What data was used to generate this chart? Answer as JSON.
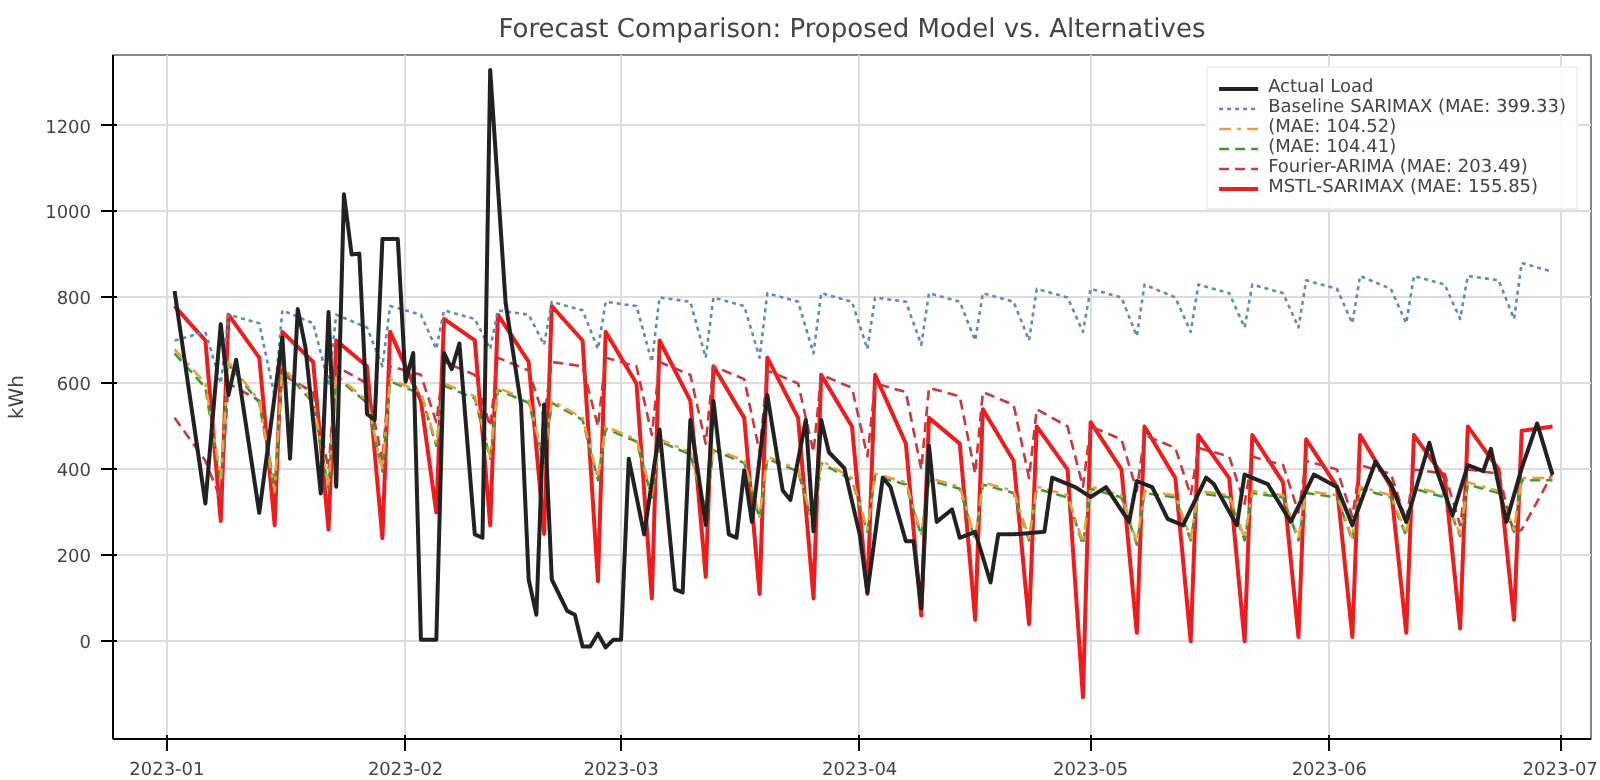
{
  "chart_data": {
    "type": "line",
    "title": "Forecast Comparison: Proposed Model vs. Alternatives",
    "ylabel": "kWh",
    "x": [
      "2023-01-02",
      "2023-01-06",
      "2023-01-08",
      "2023-01-09",
      "2023-01-13",
      "2023-01-15",
      "2023-01-16",
      "2023-01-20",
      "2023-01-22",
      "2023-01-23",
      "2023-01-27",
      "2023-01-29",
      "2023-01-30",
      "2023-02-03",
      "2023-02-05",
      "2023-02-06",
      "2023-02-10",
      "2023-02-12",
      "2023-02-13",
      "2023-02-17",
      "2023-02-19",
      "2023-02-20",
      "2023-02-24",
      "2023-02-26",
      "2023-02-27",
      "2023-03-03",
      "2023-03-05",
      "2023-03-06",
      "2023-03-10",
      "2023-03-12",
      "2023-03-13",
      "2023-03-17",
      "2023-03-19",
      "2023-03-20",
      "2023-03-24",
      "2023-03-26",
      "2023-03-27",
      "2023-03-31",
      "2023-04-02",
      "2023-04-03",
      "2023-04-07",
      "2023-04-09",
      "2023-04-10",
      "2023-04-14",
      "2023-04-16",
      "2023-04-17",
      "2023-04-21",
      "2023-04-23",
      "2023-04-24",
      "2023-04-28",
      "2023-04-30",
      "2023-05-01",
      "2023-05-05",
      "2023-05-07",
      "2023-05-08",
      "2023-05-12",
      "2023-05-14",
      "2023-05-15",
      "2023-05-19",
      "2023-05-21",
      "2023-05-22",
      "2023-05-26",
      "2023-05-28",
      "2023-05-29",
      "2023-06-02",
      "2023-06-04",
      "2023-06-05",
      "2023-06-09",
      "2023-06-11",
      "2023-06-12",
      "2023-06-16",
      "2023-06-18",
      "2023-06-19",
      "2023-06-23",
      "2023-06-25",
      "2023-06-26",
      "2023-06-30"
    ],
    "series": [
      {
        "name": "Actual Load",
        "color": "#222222",
        "line_style": "solid",
        "x": [
          "2023-01-02",
          "2023-01-06",
          "2023-01-08",
          "2023-01-09",
          "2023-01-10",
          "2023-01-13",
          "2023-01-16",
          "2023-01-17",
          "2023-01-18",
          "2023-01-19",
          "2023-01-21",
          "2023-01-22",
          "2023-01-23",
          "2023-01-24",
          "2023-01-25",
          "2023-01-26",
          "2023-01-27",
          "2023-01-28",
          "2023-01-29",
          "2023-01-31",
          "2023-02-01",
          "2023-02-02",
          "2023-02-03",
          "2023-02-05",
          "2023-02-06",
          "2023-02-07",
          "2023-02-08",
          "2023-02-10",
          "2023-02-11",
          "2023-02-12",
          "2023-02-14",
          "2023-02-16",
          "2023-02-17",
          "2023-02-18",
          "2023-02-19",
          "2023-02-20",
          "2023-02-22",
          "2023-02-23",
          "2023-02-24",
          "2023-02-25",
          "2023-02-26",
          "2023-02-27",
          "2023-02-28",
          "2023-03-01",
          "2023-03-02",
          "2023-03-04",
          "2023-03-06",
          "2023-03-08",
          "2023-03-09",
          "2023-03-10",
          "2023-03-12",
          "2023-03-13",
          "2023-03-15",
          "2023-03-16",
          "2023-03-17",
          "2023-03-18",
          "2023-03-20",
          "2023-03-22",
          "2023-03-23",
          "2023-03-25",
          "2023-03-26",
          "2023-03-27",
          "2023-03-28",
          "2023-03-30",
          "2023-04-01",
          "2023-04-02",
          "2023-04-04",
          "2023-04-05",
          "2023-04-07",
          "2023-04-08",
          "2023-04-09",
          "2023-04-10",
          "2023-04-11",
          "2023-04-13",
          "2023-04-14",
          "2023-04-16",
          "2023-04-18",
          "2023-04-19",
          "2023-04-21",
          "2023-04-25",
          "2023-04-26",
          "2023-04-29",
          "2023-05-01",
          "2023-05-03",
          "2023-05-06",
          "2023-05-07",
          "2023-05-09",
          "2023-05-11",
          "2023-05-13",
          "2023-05-16",
          "2023-05-17",
          "2023-05-20",
          "2023-05-21",
          "2023-05-24",
          "2023-05-27",
          "2023-05-30",
          "2023-06-02",
          "2023-06-04",
          "2023-06-07",
          "2023-06-09",
          "2023-06-11",
          "2023-06-14",
          "2023-06-15",
          "2023-06-17",
          "2023-06-19",
          "2023-06-21",
          "2023-06-22",
          "2023-06-24",
          "2023-06-26",
          "2023-06-28",
          "2023-06-30"
        ],
        "values": [
          815,
          321,
          738,
          573,
          655,
          299,
          707,
          425,
          773,
          684,
          344,
          766,
          360,
          1040,
          900,
          902,
          529,
          515,
          936,
          936,
          604,
          671,
          4,
          4,
          671,
          633,
          693,
          249,
          241,
          1329,
          788,
          551,
          144,
          62,
          551,
          144,
          71,
          62,
          -12,
          -12,
          18,
          -14,
          4,
          4,
          425,
          249,
          493,
          121,
          114,
          515,
          271,
          559,
          249,
          241,
          398,
          278,
          573,
          351,
          329,
          515,
          256,
          515,
          440,
          403,
          249,
          114,
          381,
          359,
          233,
          233,
          77,
          455,
          278,
          307,
          241,
          255,
          137,
          249,
          249,
          255,
          381,
          359,
          336,
          359,
          278,
          373,
          359,
          285,
          270,
          381,
          366,
          270,
          388,
          366,
          278,
          388,
          359,
          270,
          418,
          366,
          278,
          462,
          396,
          293,
          410,
          396,
          448,
          278,
          403,
          507,
          388
        ]
      },
      {
        "name": "Baseline SARIMAX (MAE: 399.33)",
        "color": "#5b8db8",
        "line_style": "dotted",
        "values": [
          700,
          720,
          600,
          760,
          740,
          570,
          770,
          740,
          600,
          760,
          730,
          640,
          780,
          760,
          680,
          770,
          750,
          680,
          770,
          760,
          690,
          790,
          770,
          680,
          790,
          780,
          650,
          800,
          790,
          660,
          800,
          780,
          660,
          810,
          790,
          670,
          810,
          790,
          680,
          800,
          790,
          690,
          810,
          790,
          700,
          810,
          790,
          700,
          820,
          800,
          720,
          820,
          800,
          710,
          830,
          800,
          720,
          830,
          810,
          730,
          830,
          810,
          730,
          840,
          820,
          740,
          850,
          820,
          740,
          850,
          830,
          750,
          850,
          840,
          750,
          880,
          860
        ]
      },
      {
        "name": "(MAE: 104.52)",
        "color": "#e8a040",
        "line_style": "dashdot",
        "values": [
          680,
          600,
          380,
          650,
          560,
          350,
          640,
          560,
          360,
          620,
          560,
          400,
          610,
          580,
          460,
          600,
          570,
          430,
          590,
          560,
          420,
          560,
          520,
          380,
          500,
          470,
          340,
          470,
          440,
          310,
          450,
          420,
          290,
          430,
          400,
          270,
          420,
          380,
          260,
          390,
          370,
          250,
          380,
          360,
          240,
          370,
          350,
          240,
          360,
          340,
          230,
          360,
          340,
          230,
          350,
          340,
          240,
          350,
          340,
          240,
          350,
          340,
          240,
          350,
          340,
          240,
          360,
          340,
          250,
          360,
          340,
          250,
          370,
          350,
          260,
          380,
          380
        ]
      },
      {
        "name": "(MAE: 104.41)",
        "color": "#3a9a3a",
        "line_style": "dashed",
        "values": [
          670,
          590,
          370,
          645,
          555,
          345,
          635,
          555,
          355,
          615,
          555,
          395,
          605,
          575,
          455,
          595,
          565,
          425,
          585,
          555,
          415,
          555,
          515,
          375,
          495,
          465,
          335,
          465,
          435,
          305,
          445,
          415,
          285,
          425,
          395,
          265,
          415,
          375,
          255,
          385,
          365,
          245,
          375,
          355,
          235,
          365,
          345,
          235,
          355,
          335,
          225,
          355,
          335,
          225,
          345,
          335,
          235,
          345,
          335,
          235,
          345,
          335,
          235,
          345,
          335,
          235,
          355,
          335,
          245,
          355,
          335,
          245,
          365,
          345,
          255,
          375,
          375
        ]
      },
      {
        "name": "Fourier-ARIMA (MAE: 203.49)",
        "color": "#c8383c",
        "line_style": "dashed",
        "values": [
          520,
          420,
          330,
          600,
          560,
          360,
          620,
          580,
          400,
          640,
          600,
          420,
          640,
          620,
          510,
          650,
          620,
          500,
          660,
          630,
          520,
          650,
          640,
          500,
          660,
          640,
          480,
          650,
          620,
          460,
          640,
          610,
          440,
          630,
          600,
          440,
          620,
          590,
          430,
          600,
          580,
          400,
          590,
          570,
          390,
          580,
          550,
          380,
          540,
          500,
          360,
          500,
          470,
          350,
          480,
          450,
          340,
          450,
          430,
          320,
          430,
          410,
          300,
          420,
          400,
          290,
          410,
          390,
          280,
          400,
          390,
          270,
          400,
          390,
          250,
          260,
          390
        ]
      },
      {
        "name": "MSTL-SARIMAX (MAE: 155.85)",
        "color": "#ee1c1c",
        "line_style": "solid",
        "values": [
          780,
          700,
          280,
          760,
          660,
          270,
          720,
          650,
          260,
          700,
          640,
          240,
          720,
          560,
          300,
          750,
          700,
          270,
          760,
          650,
          250,
          780,
          700,
          140,
          720,
          600,
          100,
          700,
          560,
          150,
          640,
          520,
          110,
          660,
          520,
          100,
          620,
          500,
          110,
          620,
          460,
          60,
          520,
          460,
          50,
          540,
          420,
          40,
          500,
          400,
          -130,
          510,
          400,
          20,
          500,
          380,
          0,
          480,
          380,
          0,
          480,
          370,
          10,
          470,
          360,
          10,
          480,
          360,
          20,
          480,
          380,
          30,
          500,
          400,
          50,
          490,
          500
        ]
      }
    ],
    "xlim": [
      "2022-12-25",
      "2023-07-05"
    ],
    "xticks": [
      "2023-01",
      "2023-02",
      "2023-03",
      "2023-04",
      "2023-05",
      "2023-06",
      "2023-07"
    ],
    "ylim": [
      -227,
      1364
    ],
    "yticks": [
      0,
      200,
      400,
      600,
      800,
      1000,
      1200
    ],
    "grid": true,
    "legend": "top right"
  }
}
